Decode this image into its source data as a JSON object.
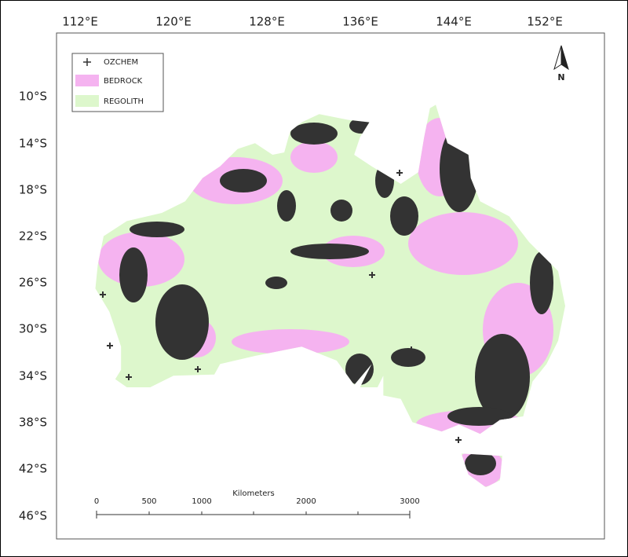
{
  "map": {
    "lon_labels": [
      "112°E",
      "120°E",
      "128°E",
      "136°E",
      "144°E",
      "152°E"
    ],
    "lat_labels": [
      "10°S",
      "14°S",
      "18°S",
      "22°S",
      "26°S",
      "30°S",
      "34°S",
      "38°S",
      "42°S",
      "46°S"
    ],
    "legend": [
      "OZCHEM",
      "BEDROCK",
      "REGOLITH"
    ],
    "scale_bar": {
      "title": "Kilometers",
      "labels": [
        "0",
        "500",
        "1000",
        "2000",
        "3000"
      ]
    },
    "north_arrow": "N"
  }
}
